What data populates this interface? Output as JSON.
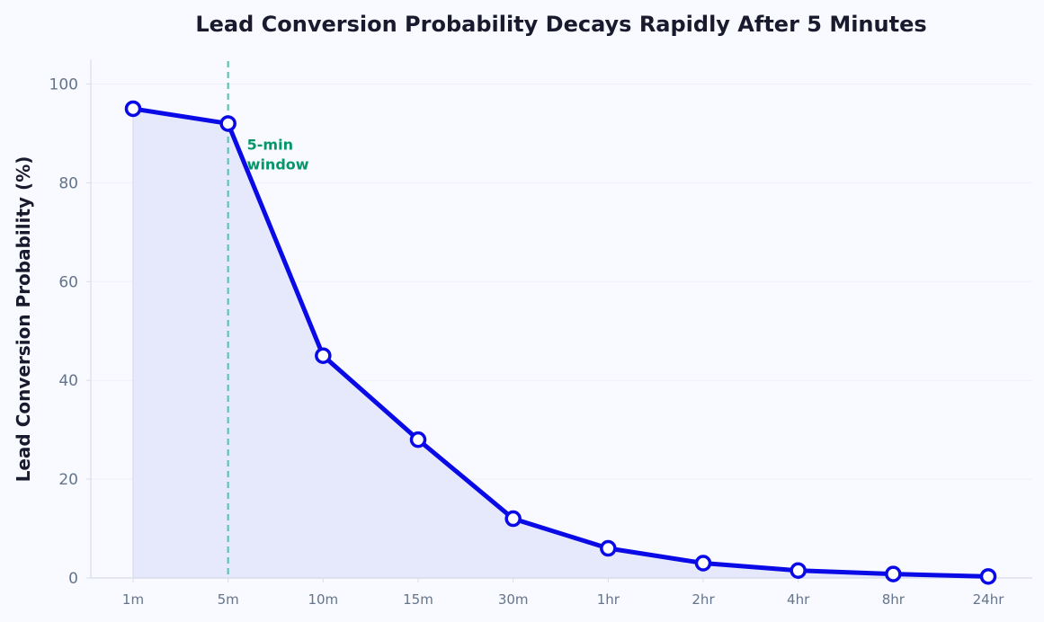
{
  "chart_data": {
    "type": "line",
    "title": "Lead Conversion Probability Decays Rapidly After 5 Minutes",
    "xlabel": "",
    "ylabel": "Lead Conversion Probability (%)",
    "categories": [
      "1m",
      "5m",
      "10m",
      "15m",
      "30m",
      "1hr",
      "2hr",
      "4hr",
      "8hr",
      "24hr"
    ],
    "series": [
      {
        "values": [
          95,
          92,
          45,
          28,
          12,
          6,
          3,
          1.5,
          0.8,
          0.3
        ]
      }
    ],
    "ylim": [
      0,
      105
    ],
    "yticks": [
      0,
      20,
      40,
      60,
      80,
      100
    ],
    "grid": "horizontal",
    "area_fill": true,
    "annotation": {
      "text_lines": [
        "5-min",
        "window"
      ],
      "at_category": "5m",
      "text_y": 86
    },
    "colors": {
      "line": "#0a0ae6",
      "fill": "#e6e8fc",
      "marker_fill": "#ffffff",
      "annotation": "#059669",
      "reference_line": "#5fc4b0",
      "grid": "#eef1f8",
      "axis": "#d9dde8",
      "background": "#f8faff"
    }
  }
}
